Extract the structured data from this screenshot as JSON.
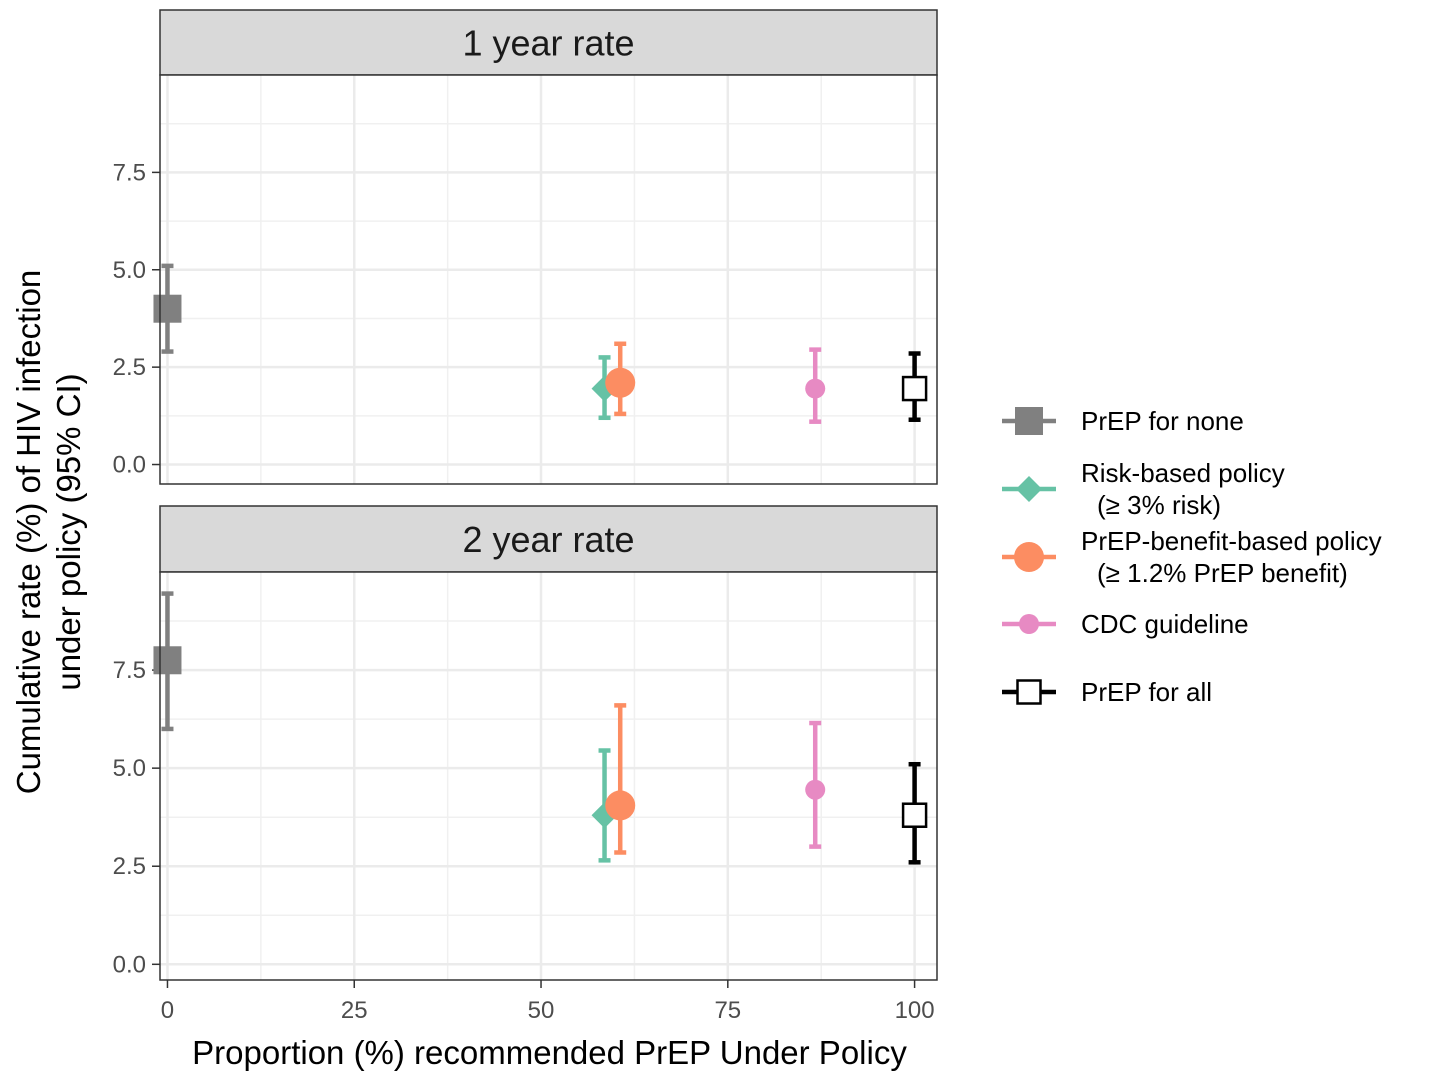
{
  "chart_data": {
    "type": "scatter",
    "xlabel": "Proportion (%) recommended PrEP Under Policy",
    "ylabel_lines": [
      "Cumulative rate (%) of HIV infection",
      "under policy (95% CI)"
    ],
    "xlim": [
      -1,
      103
    ],
    "x_ticks": [
      "0",
      "25",
      "50",
      "75",
      "100"
    ],
    "legend": {
      "placement": "right",
      "entries": [
        {
          "key": "none",
          "lines": [
            "PrEP for none"
          ]
        },
        {
          "key": "risk",
          "lines": [
            "Risk-based policy",
            "(≥ 3% risk)"
          ]
        },
        {
          "key": "benefit",
          "lines": [
            "PrEP-benefit-based policy",
            "(≥ 1.2% PrEP benefit)"
          ]
        },
        {
          "key": "cdc",
          "lines": [
            "CDC guideline"
          ]
        },
        {
          "key": "all",
          "lines": [
            "PrEP for all"
          ]
        }
      ]
    },
    "series_style": {
      "none": {
        "color": "#808080",
        "shape": "square-filled"
      },
      "risk": {
        "color": "#66c2a5",
        "shape": "diamond"
      },
      "benefit": {
        "color": "#fc8d62",
        "shape": "circle-large"
      },
      "cdc": {
        "color": "#e78ac3",
        "shape": "circle"
      },
      "all": {
        "color": "#000000",
        "shape": "square-open"
      }
    },
    "panels": [
      {
        "title": "1 year rate",
        "ylim": [
          -0.5,
          10
        ],
        "y_ticks": [
          "0.0",
          "2.5",
          "5.0",
          "7.5"
        ],
        "points": [
          {
            "series": "none",
            "x": 0,
            "y": 4.0,
            "ymin": 2.9,
            "ymax": 5.1
          },
          {
            "series": "risk",
            "x": 58.5,
            "y": 1.95,
            "ymin": 1.2,
            "ymax": 2.75
          },
          {
            "series": "benefit",
            "x": 60.6,
            "y": 2.1,
            "ymin": 1.3,
            "ymax": 3.1
          },
          {
            "series": "cdc",
            "x": 86.7,
            "y": 1.95,
            "ymin": 1.1,
            "ymax": 2.95
          },
          {
            "series": "all",
            "x": 100,
            "y": 1.95,
            "ymin": 1.15,
            "ymax": 2.85
          }
        ]
      },
      {
        "title": "2 year rate",
        "ylim": [
          -0.4,
          10
        ],
        "y_ticks": [
          "0.0",
          "2.5",
          "5.0",
          "7.5"
        ],
        "points": [
          {
            "series": "none",
            "x": 0,
            "y": 7.75,
            "ymin": 6.0,
            "ymax": 9.45
          },
          {
            "series": "risk",
            "x": 58.5,
            "y": 3.8,
            "ymin": 2.65,
            "ymax": 5.45
          },
          {
            "series": "benefit",
            "x": 60.6,
            "y": 4.05,
            "ymin": 2.85,
            "ymax": 6.6
          },
          {
            "series": "cdc",
            "x": 86.7,
            "y": 4.45,
            "ymin": 3.0,
            "ymax": 6.15
          },
          {
            "series": "all",
            "x": 100,
            "y": 3.8,
            "ymin": 2.6,
            "ymax": 5.1
          }
        ]
      }
    ]
  }
}
